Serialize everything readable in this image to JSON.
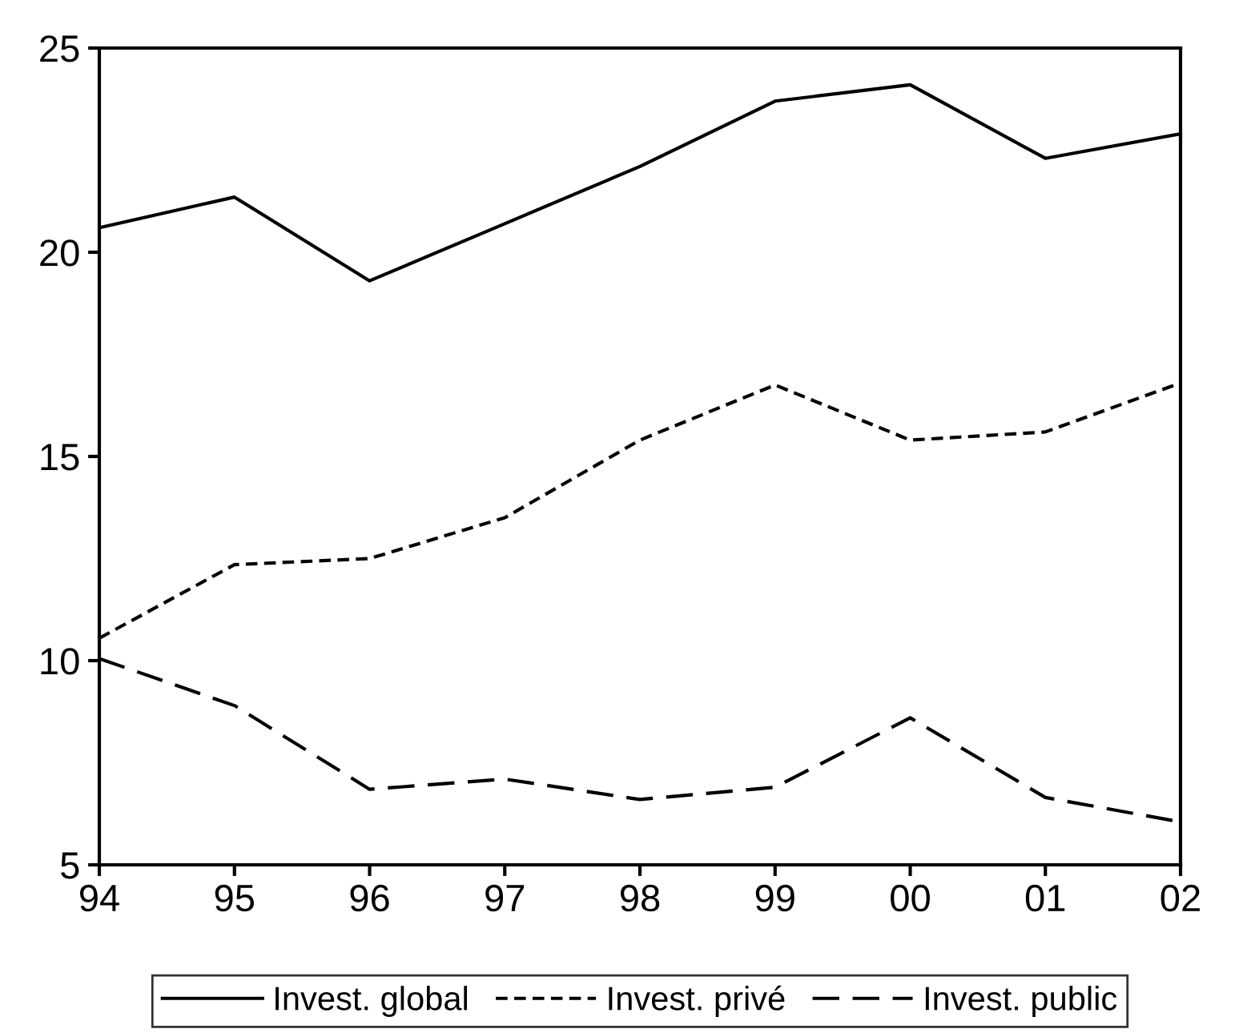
{
  "chart_data": {
    "type": "line",
    "categories": [
      "94",
      "95",
      "96",
      "97",
      "98",
      "99",
      "00",
      "01",
      "02"
    ],
    "series": [
      {
        "name": "Invest. global",
        "color": "#000000",
        "line_style": "solid",
        "values": [
          20.6,
          21.35,
          19.3,
          20.7,
          22.1,
          23.7,
          24.1,
          22.3,
          22.9
        ]
      },
      {
        "name": "Invest. privé",
        "color": "#000000",
        "line_style": "dashed",
        "values": [
          10.55,
          12.35,
          12.5,
          13.5,
          15.4,
          16.75,
          15.4,
          15.6,
          16.8
        ]
      },
      {
        "name": "Invest. public",
        "color": "#000000",
        "line_style": "longdashed",
        "values": [
          10.05,
          8.9,
          6.85,
          7.1,
          6.6,
          6.9,
          8.6,
          6.65,
          6.05
        ]
      }
    ],
    "ylim": [
      5,
      25
    ],
    "yticks": [
      5,
      10,
      15,
      20,
      25
    ],
    "grid": false,
    "legend": "bottom",
    "marker": "none"
  }
}
